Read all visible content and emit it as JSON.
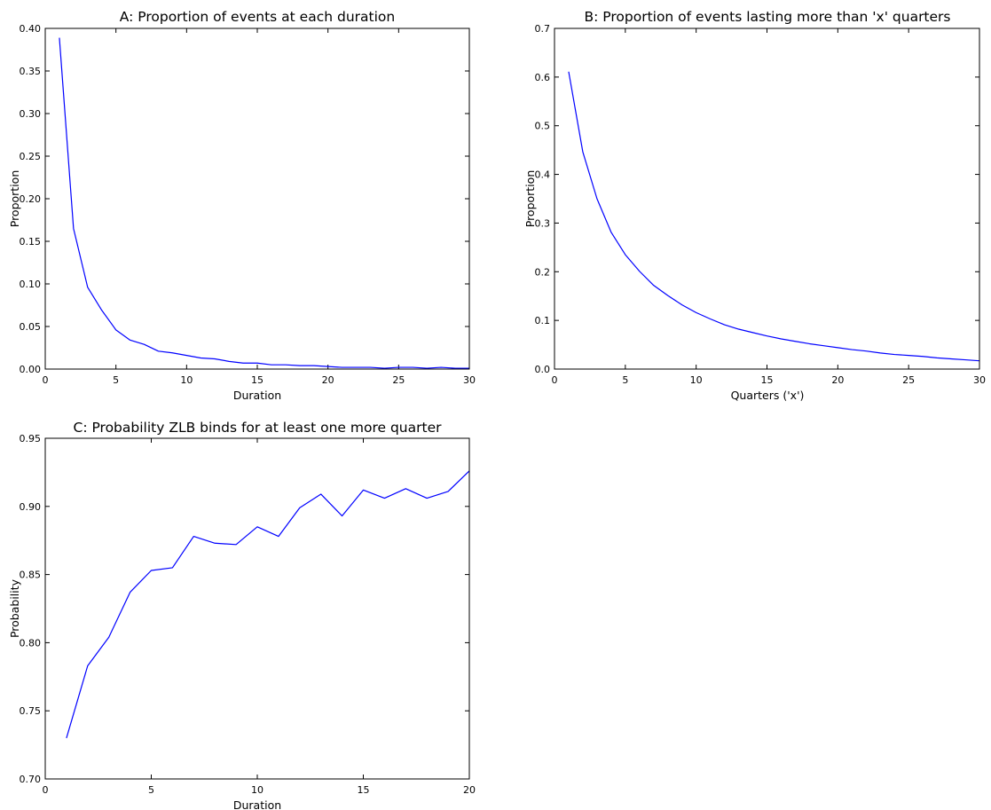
{
  "chart_data": [
    {
      "id": "A",
      "type": "line",
      "title": "A: Proportion of events at each duration",
      "xlabel": "Duration",
      "ylabel": "Proportion",
      "xlim": [
        0,
        30
      ],
      "ylim": [
        0,
        0.4
      ],
      "xticks": [
        0,
        5,
        10,
        15,
        20,
        25,
        30
      ],
      "yticks": [
        0,
        0.05,
        0.1,
        0.15,
        0.2,
        0.25,
        0.3,
        0.35,
        0.4
      ],
      "ytick_decimals": 2,
      "grid": false,
      "color": "#0000ff",
      "series": [
        {
          "x": [
            1,
            2,
            3,
            4,
            5,
            6,
            7,
            8,
            9,
            10,
            11,
            12,
            13,
            14,
            15,
            16,
            17,
            18,
            19,
            20,
            21,
            22,
            23,
            24,
            25,
            26,
            27,
            28,
            29,
            30
          ],
          "y": [
            0.389,
            0.165,
            0.096,
            0.069,
            0.046,
            0.034,
            0.029,
            0.021,
            0.019,
            0.016,
            0.013,
            0.012,
            0.009,
            0.007,
            0.007,
            0.005,
            0.005,
            0.004,
            0.004,
            0.003,
            0.002,
            0.002,
            0.002,
            0.001,
            0.002,
            0.002,
            0.001,
            0.002,
            0.001,
            0.001
          ]
        }
      ]
    },
    {
      "id": "B",
      "type": "line",
      "title": "B: Proportion of events lasting more than 'x' quarters",
      "xlabel": "Quarters ('x')",
      "ylabel": "Proportion",
      "xlim": [
        0,
        30
      ],
      "ylim": [
        0,
        0.7
      ],
      "xticks": [
        0,
        5,
        10,
        15,
        20,
        25,
        30
      ],
      "yticks": [
        0,
        0.1,
        0.2,
        0.3,
        0.4,
        0.5,
        0.6,
        0.7
      ],
      "ytick_decimals": 1,
      "grid": false,
      "color": "#0000ff",
      "series": [
        {
          "x": [
            1,
            2,
            3,
            4,
            5,
            6,
            7,
            8,
            9,
            10,
            11,
            12,
            13,
            14,
            15,
            16,
            17,
            18,
            19,
            20,
            21,
            22,
            23,
            24,
            25,
            26,
            27,
            28,
            29,
            30
          ],
          "y": [
            0.611,
            0.446,
            0.35,
            0.281,
            0.235,
            0.201,
            0.172,
            0.151,
            0.132,
            0.116,
            0.103,
            0.091,
            0.082,
            0.075,
            0.068,
            0.062,
            0.057,
            0.052,
            0.048,
            0.044,
            0.04,
            0.037,
            0.033,
            0.03,
            0.028,
            0.026,
            0.023,
            0.021,
            0.019,
            0.017
          ]
        }
      ]
    },
    {
      "id": "C",
      "type": "line",
      "title": "C: Probability ZLB binds for at least one more quarter",
      "xlabel": "Duration",
      "ylabel": "Probability",
      "xlim": [
        0,
        20
      ],
      "ylim": [
        0.7,
        0.95
      ],
      "xticks": [
        0,
        5,
        10,
        15,
        20
      ],
      "yticks": [
        0.7,
        0.75,
        0.8,
        0.85,
        0.9,
        0.95
      ],
      "ytick_decimals": 2,
      "grid": false,
      "color": "#0000ff",
      "series": [
        {
          "x": [
            1,
            2,
            3,
            4,
            5,
            6,
            7,
            8,
            9,
            10,
            11,
            12,
            13,
            14,
            15,
            16,
            17,
            18,
            19,
            20
          ],
          "y": [
            0.73,
            0.783,
            0.804,
            0.837,
            0.853,
            0.855,
            0.878,
            0.873,
            0.872,
            0.885,
            0.878,
            0.899,
            0.909,
            0.893,
            0.912,
            0.906,
            0.913,
            0.906,
            0.911,
            0.926
          ]
        }
      ]
    }
  ]
}
